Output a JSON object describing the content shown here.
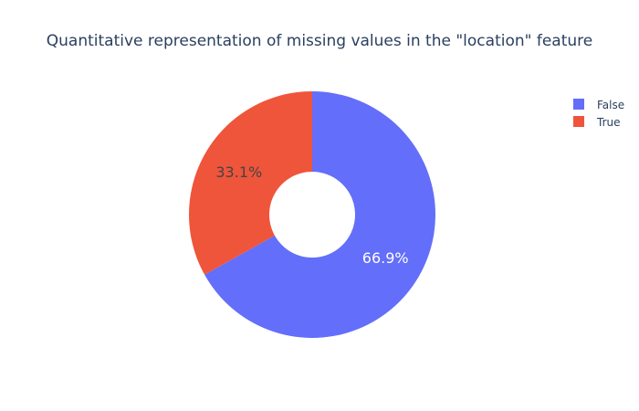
{
  "chart_data": {
    "type": "pie",
    "hole": true,
    "title": "Quantitative representation of missing values in the \"location\" feature",
    "labels": [
      "False",
      "True"
    ],
    "values": [
      66.9,
      33.1
    ],
    "value_labels": [
      "66.9%",
      "33.1%"
    ],
    "colors": [
      "#636efa",
      "#ef553b"
    ],
    "label_colors": [
      "#ffffff",
      "#444444"
    ],
    "legend_position": "top-right"
  }
}
